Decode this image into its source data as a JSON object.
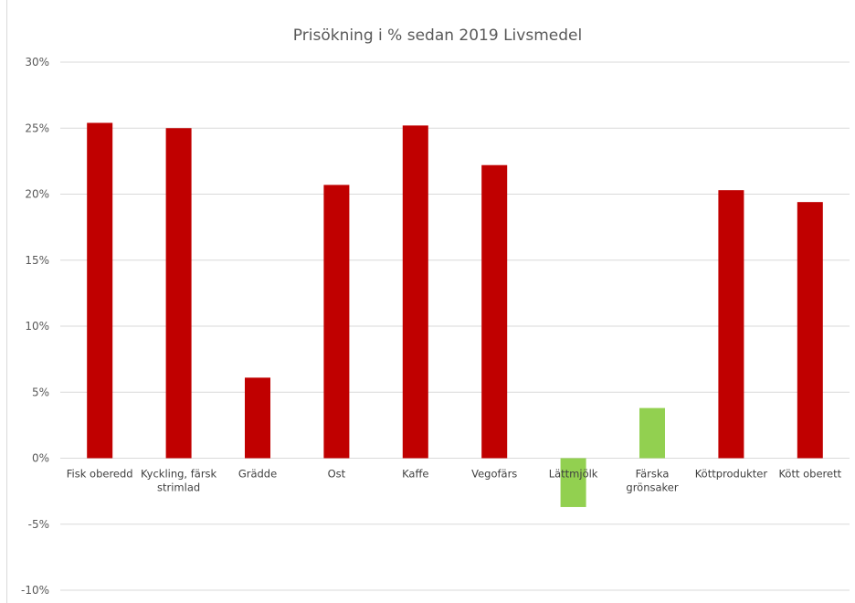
{
  "chart_data": {
    "type": "bar",
    "title": "Prisökning i % sedan 2019 Livsmedel",
    "xlabel": "",
    "ylabel": "",
    "ylim": [
      -10,
      30
    ],
    "yticks": [
      30,
      25,
      20,
      15,
      10,
      5,
      0,
      -5,
      -10
    ],
    "ytick_labels": [
      "30%",
      "25%",
      "20%",
      "15%",
      "10%",
      "5%",
      "0%",
      "-5%",
      "-10%"
    ],
    "grid": true,
    "legend": "none",
    "categories": [
      [
        "Fisk oberedd"
      ],
      [
        "Kyckling, färsk",
        "strimlad"
      ],
      [
        "Grädde"
      ],
      [
        "Ost"
      ],
      [
        "Kaffe"
      ],
      [
        "Vegofärs"
      ],
      [
        "Lättmjölk"
      ],
      [
        "Färska",
        "grönsaker"
      ],
      [
        "Köttprodukter"
      ],
      [
        "Kött oberett"
      ]
    ],
    "values": [
      25.4,
      25.0,
      6.1,
      20.7,
      25.2,
      22.2,
      -3.7,
      3.8,
      20.3,
      19.4
    ],
    "colors": [
      "#c00000",
      "#c00000",
      "#c00000",
      "#c00000",
      "#c00000",
      "#c00000",
      "#92d050",
      "#92d050",
      "#c00000",
      "#c00000"
    ],
    "gridline_color": "#d9d9d9"
  }
}
